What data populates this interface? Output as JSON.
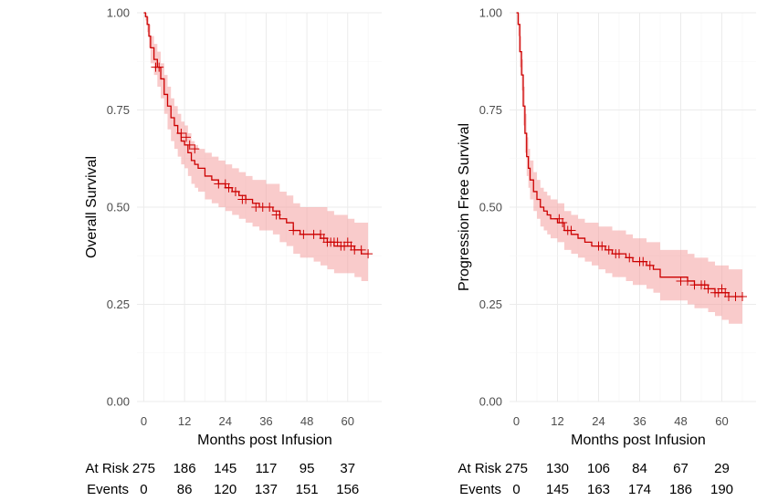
{
  "chart_data": [
    {
      "type": "line",
      "subtype": "kaplan-meier",
      "title": "",
      "xlabel": "Months post Infusion",
      "ylabel": "Overall Survival",
      "xticks": [
        "0",
        "12",
        "24",
        "36",
        "48",
        "60"
      ],
      "yticks": [
        "0.00",
        "0.25",
        "0.50",
        "0.75",
        "1.00"
      ],
      "xlim": [
        -2,
        70
      ],
      "ylim": [
        0,
        1
      ],
      "grid": true,
      "series": [
        {
          "name": "Overall Survival",
          "color": "#cc0000",
          "band_color": "#f4a0a0",
          "x": [
            0,
            0.5,
            1,
            1.5,
            2,
            3,
            4,
            5,
            6,
            7,
            8,
            9,
            10,
            11,
            12,
            13,
            14,
            15,
            16,
            18,
            20,
            22,
            24,
            26,
            28,
            30,
            32,
            34,
            36,
            38,
            40,
            42,
            44,
            46,
            48,
            50,
            52,
            54,
            56,
            58,
            60,
            62,
            64,
            66
          ],
          "y": [
            1.0,
            0.99,
            0.97,
            0.94,
            0.91,
            0.88,
            0.86,
            0.83,
            0.79,
            0.76,
            0.73,
            0.71,
            0.69,
            0.67,
            0.66,
            0.64,
            0.62,
            0.61,
            0.6,
            0.58,
            0.57,
            0.56,
            0.55,
            0.54,
            0.53,
            0.52,
            0.51,
            0.5,
            0.5,
            0.49,
            0.47,
            0.46,
            0.44,
            0.43,
            0.43,
            0.43,
            0.42,
            0.41,
            0.4,
            0.4,
            0.4,
            0.39,
            0.38,
            0.38
          ],
          "upper": [
            1.0,
            1.0,
            0.99,
            0.97,
            0.94,
            0.92,
            0.9,
            0.87,
            0.84,
            0.81,
            0.78,
            0.76,
            0.74,
            0.72,
            0.71,
            0.69,
            0.67,
            0.66,
            0.65,
            0.64,
            0.63,
            0.62,
            0.61,
            0.6,
            0.59,
            0.58,
            0.57,
            0.57,
            0.56,
            0.56,
            0.54,
            0.53,
            0.51,
            0.5,
            0.5,
            0.5,
            0.5,
            0.49,
            0.48,
            0.48,
            0.47,
            0.46,
            0.46,
            0.46
          ],
          "lower": [
            1.0,
            0.98,
            0.95,
            0.91,
            0.87,
            0.84,
            0.81,
            0.78,
            0.74,
            0.7,
            0.67,
            0.65,
            0.63,
            0.61,
            0.6,
            0.58,
            0.56,
            0.55,
            0.54,
            0.52,
            0.51,
            0.5,
            0.49,
            0.48,
            0.47,
            0.46,
            0.45,
            0.44,
            0.44,
            0.43,
            0.41,
            0.4,
            0.38,
            0.37,
            0.37,
            0.36,
            0.35,
            0.34,
            0.33,
            0.33,
            0.33,
            0.32,
            0.31,
            0.31
          ],
          "censor_x": [
            3.5,
            4.5,
            11,
            12.5,
            13.5,
            15,
            22,
            24,
            25,
            27,
            29,
            30,
            33,
            35,
            37,
            39,
            44,
            47,
            50,
            52,
            53,
            54,
            55,
            56,
            57,
            58,
            59,
            60,
            61,
            62,
            64,
            66
          ],
          "censor_y": [
            0.86,
            0.86,
            0.69,
            0.68,
            0.66,
            0.65,
            0.56,
            0.56,
            0.55,
            0.54,
            0.52,
            0.52,
            0.5,
            0.5,
            0.5,
            0.48,
            0.44,
            0.43,
            0.43,
            0.43,
            0.42,
            0.41,
            0.41,
            0.41,
            0.41,
            0.4,
            0.4,
            0.41,
            0.4,
            0.39,
            0.39,
            0.38
          ]
        }
      ],
      "risk_table": {
        "rows": [
          {
            "label": "At Risk",
            "times": [
              0,
              12,
              24,
              36,
              48,
              60
            ],
            "values": [
              "275",
              "186",
              "145",
              "117",
              "95",
              "37"
            ]
          },
          {
            "label": "Events",
            "times": [
              0,
              12,
              24,
              36,
              48,
              60
            ],
            "values": [
              "0",
              "86",
              "120",
              "137",
              "151",
              "156"
            ]
          }
        ]
      }
    },
    {
      "type": "line",
      "subtype": "kaplan-meier",
      "title": "",
      "xlabel": "Months post Infusion",
      "ylabel": "Progression Free Survival",
      "xticks": [
        "0",
        "12",
        "24",
        "36",
        "48",
        "60"
      ],
      "yticks": [
        "0.00",
        "0.25",
        "0.50",
        "0.75",
        "1.00"
      ],
      "xlim": [
        -2,
        70
      ],
      "ylim": [
        0,
        1
      ],
      "grid": true,
      "series": [
        {
          "name": "Progression Free Survival",
          "color": "#cc0000",
          "band_color": "#f4a0a0",
          "x": [
            0,
            0.5,
            1,
            1.5,
            2,
            2.5,
            3,
            3.5,
            4,
            5,
            6,
            7,
            8,
            9,
            10,
            12,
            14,
            16,
            18,
            20,
            22,
            24,
            26,
            28,
            30,
            32,
            34,
            36,
            38,
            40,
            42,
            44,
            46,
            48,
            50,
            52,
            54,
            56,
            58,
            60,
            62,
            64,
            66
          ],
          "y": [
            1.0,
            0.97,
            0.9,
            0.84,
            0.76,
            0.69,
            0.63,
            0.6,
            0.57,
            0.54,
            0.52,
            0.5,
            0.49,
            0.48,
            0.47,
            0.46,
            0.44,
            0.43,
            0.42,
            0.41,
            0.4,
            0.4,
            0.39,
            0.38,
            0.38,
            0.37,
            0.36,
            0.36,
            0.35,
            0.34,
            0.32,
            0.32,
            0.32,
            0.32,
            0.31,
            0.3,
            0.3,
            0.29,
            0.28,
            0.28,
            0.27,
            0.27,
            0.27
          ],
          "upper": [
            1.0,
            1.0,
            0.94,
            0.88,
            0.81,
            0.74,
            0.68,
            0.65,
            0.62,
            0.59,
            0.57,
            0.55,
            0.54,
            0.53,
            0.52,
            0.51,
            0.49,
            0.48,
            0.47,
            0.46,
            0.46,
            0.45,
            0.45,
            0.44,
            0.44,
            0.43,
            0.42,
            0.42,
            0.41,
            0.41,
            0.39,
            0.39,
            0.39,
            0.39,
            0.38,
            0.37,
            0.37,
            0.36,
            0.35,
            0.35,
            0.34,
            0.34,
            0.34
          ],
          "lower": [
            1.0,
            0.94,
            0.86,
            0.8,
            0.71,
            0.64,
            0.58,
            0.55,
            0.52,
            0.49,
            0.47,
            0.45,
            0.44,
            0.43,
            0.42,
            0.41,
            0.39,
            0.38,
            0.37,
            0.36,
            0.35,
            0.34,
            0.33,
            0.32,
            0.32,
            0.31,
            0.3,
            0.3,
            0.29,
            0.28,
            0.26,
            0.26,
            0.26,
            0.26,
            0.25,
            0.24,
            0.24,
            0.23,
            0.22,
            0.21,
            0.2,
            0.2,
            0.2
          ],
          "censor_x": [
            12.5,
            13.5,
            15,
            16,
            24,
            25,
            27,
            29,
            30,
            33,
            36,
            37,
            39,
            48,
            50,
            52,
            54,
            55,
            56,
            58,
            59,
            60,
            61,
            62,
            64,
            66
          ],
          "censor_y": [
            0.47,
            0.46,
            0.44,
            0.44,
            0.4,
            0.4,
            0.39,
            0.38,
            0.38,
            0.37,
            0.36,
            0.36,
            0.35,
            0.31,
            0.31,
            0.3,
            0.3,
            0.3,
            0.29,
            0.28,
            0.28,
            0.29,
            0.28,
            0.27,
            0.27,
            0.27
          ]
        }
      ],
      "risk_table": {
        "rows": [
          {
            "label": "At Risk",
            "times": [
              0,
              12,
              24,
              36,
              48,
              60
            ],
            "values": [
              "275",
              "130",
              "106",
              "84",
              "67",
              "29"
            ]
          },
          {
            "label": "Events",
            "times": [
              0,
              12,
              24,
              36,
              48,
              60
            ],
            "values": [
              "0",
              "145",
              "163",
              "174",
              "186",
              "190"
            ]
          }
        ]
      }
    }
  ]
}
